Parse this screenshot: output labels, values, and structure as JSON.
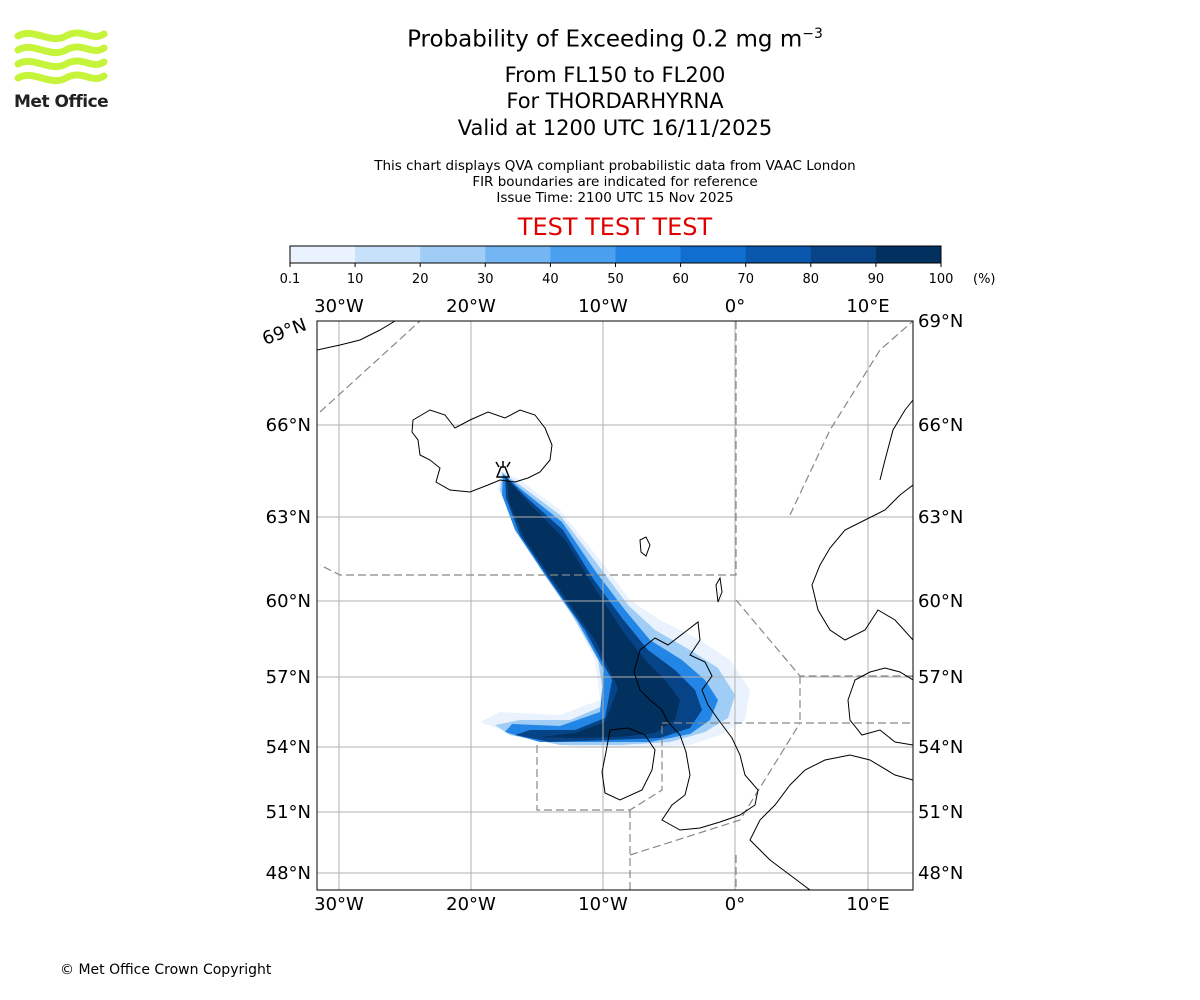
{
  "header": {
    "title_main": "Probability of Exceeding 0.2 mg m",
    "title_exp": "−3",
    "title_level": "From FL150 to FL200",
    "title_volcano": "For THORDARHYRNA",
    "title_valid": "Valid at 1200 UTC 16/11/2025",
    "note_line1": "This chart displays QVA compliant probabilistic data from VAAC London",
    "note_line2": "FIR boundaries are indicated for reference",
    "note_line3": "Issue Time: 2100 UTC 15 Nov 2025",
    "test_banner": "TEST TEST TEST"
  },
  "logo": {
    "text": "Met Office",
    "color": "#c5f43a"
  },
  "colorbar": {
    "ticks": [
      "0.1",
      "10",
      "20",
      "30",
      "40",
      "50",
      "60",
      "70",
      "80",
      "90",
      "100"
    ],
    "unit": "(%)",
    "colors": [
      "#eaf3fd",
      "#c6e1f9",
      "#9fcdf6",
      "#74b6f3",
      "#4aa0ef",
      "#2386e6",
      "#0f6ecf",
      "#0a58ad",
      "#064487",
      "#02305f"
    ]
  },
  "map": {
    "lon_labels": [
      "30°W",
      "20°W",
      "10°W",
      "0°",
      "10°E"
    ],
    "lat_labels": [
      "48°N",
      "51°N",
      "54°N",
      "57°N",
      "60°N",
      "63°N",
      "66°N",
      "69°N"
    ],
    "corner_label": "69°N"
  },
  "footer": {
    "copyright": "© Met Office Crown Copyright"
  }
}
